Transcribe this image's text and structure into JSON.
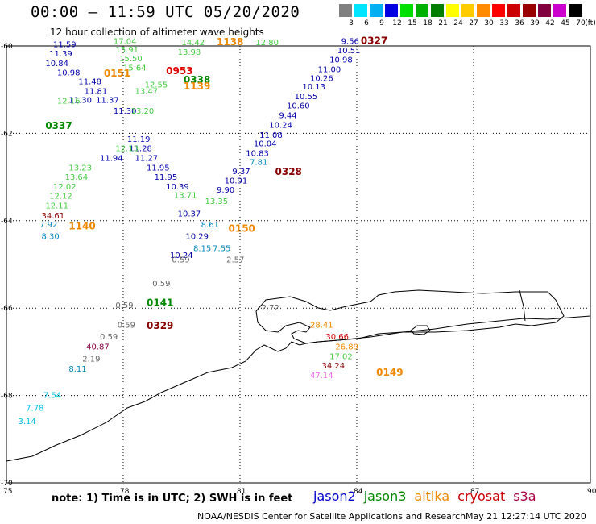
{
  "header": {
    "title": "00:00 – 11:59 UTC 05/20/2020",
    "subtitle": "12 hour collection of altimeter wave heights"
  },
  "colorbar": {
    "unit": "(ft)",
    "bins": [
      {
        "label": "3",
        "color": "#808080"
      },
      {
        "label": "6",
        "color": "#00e5ff"
      },
      {
        "label": "9",
        "color": "#00b0f0"
      },
      {
        "label": "12",
        "color": "#0000e0"
      },
      {
        "label": "15",
        "color": "#00e000"
      },
      {
        "label": "18",
        "color": "#00b000"
      },
      {
        "label": "21",
        "color": "#007f00"
      },
      {
        "label": "24",
        "color": "#ffff00"
      },
      {
        "label": "27",
        "color": "#ffcc00"
      },
      {
        "label": "30",
        "color": "#ff8c00"
      },
      {
        "label": "33",
        "color": "#ff0000"
      },
      {
        "label": "36",
        "color": "#cc0000"
      },
      {
        "label": "39",
        "color": "#990000"
      },
      {
        "label": "42",
        "color": "#800040"
      },
      {
        "label": "45",
        "color": "#cc00cc"
      },
      {
        "label": "70",
        "color": "#000000"
      }
    ]
  },
  "map": {
    "lon_ticks": [
      "75",
      "78",
      "81",
      "84",
      "87",
      "90"
    ],
    "lat_ticks": [
      "-60",
      "-62",
      "-64",
      "-66",
      "-68",
      "-70"
    ],
    "passes": [
      {
        "satellite": "jason2",
        "color": "#0000aa",
        "time": "0327",
        "values": [
          "9.56",
          "10.51",
          "10.98",
          "11.00",
          "10.26",
          "10.13",
          "10.55",
          "10.60",
          "9.44",
          "10.24",
          "11.08",
          "10.04",
          "10.83",
          "7.81",
          "9.37",
          "10.91",
          "9.90"
        ]
      },
      {
        "satellite": "cryosat",
        "color": "#880000",
        "time": "0328",
        "values": []
      },
      {
        "satellite": "jason2",
        "color": "#0000aa",
        "time": "",
        "values": [
          "11.59",
          "11.39",
          "10.84",
          "10.98",
          "11.48",
          "11.81",
          "11.30",
          "11.37",
          "11.30",
          "11.19",
          "11.28",
          "11.94",
          "11.27",
          "11.95",
          "11.95",
          "10.39",
          "10.37",
          "10.29",
          "10.24",
          "8.15",
          "7.55"
        ]
      },
      {
        "satellite": "jason3",
        "color": "#44cc44",
        "time": "0337",
        "values": [
          "17.04",
          "15.91",
          "15.50",
          "15.64",
          "13.47",
          "12.55",
          "13.20",
          "12.16",
          "12.13",
          "13.23",
          "13.64",
          "12.02",
          "12.12",
          "12.11",
          "14.42",
          "13.98",
          "12.80",
          "13.35",
          "8.61"
        ]
      },
      {
        "satellite": "altika",
        "color": "#ee8800",
        "time": "0150",
        "values": [
          "28.41",
          "26.89"
        ]
      },
      {
        "satellite": "cryosat",
        "color": "#880000",
        "time": "0141",
        "values": [
          "34.61",
          "34.24",
          "30.66"
        ]
      },
      {
        "satellite": "s3a",
        "color": "#cc4499",
        "time": "0149",
        "values": [
          "40.87",
          "47.14"
        ]
      }
    ],
    "observations": [
      {
        "text": "9.56",
        "lon": 83.6,
        "lat": -59.95,
        "color": "#0000aa"
      },
      {
        "text": "10.51",
        "lon": 83.5,
        "lat": -60.17,
        "color": "#0000aa"
      },
      {
        "text": "10.98",
        "lon": 83.3,
        "lat": -60.38,
        "color": "#0000aa"
      },
      {
        "text": "11.00",
        "lon": 83.0,
        "lat": -60.6,
        "color": "#0000aa"
      },
      {
        "text": "10.26",
        "lon": 82.8,
        "lat": -60.8,
        "color": "#0000aa"
      },
      {
        "text": "10.13",
        "lon": 82.6,
        "lat": -61.0,
        "color": "#0000aa"
      },
      {
        "text": "10.55",
        "lon": 82.4,
        "lat": -61.22,
        "color": "#0000aa"
      },
      {
        "text": "10.60",
        "lon": 82.2,
        "lat": -61.43,
        "color": "#0000aa"
      },
      {
        "text": "9.44",
        "lon": 82.0,
        "lat": -61.65,
        "color": "#0000aa"
      },
      {
        "text": "10.24",
        "lon": 81.75,
        "lat": -61.87,
        "color": "#0000aa"
      },
      {
        "text": "11.08",
        "lon": 81.5,
        "lat": -62.1,
        "color": "#0000aa"
      },
      {
        "text": "10.04",
        "lon": 81.35,
        "lat": -62.3,
        "color": "#0000aa"
      },
      {
        "text": "10.83",
        "lon": 81.15,
        "lat": -62.52,
        "color": "#0000aa"
      },
      {
        "text": "7.81",
        "lon": 81.25,
        "lat": -62.72,
        "color": "#0088bb"
      },
      {
        "text": "9.37",
        "lon": 80.8,
        "lat": -62.93,
        "color": "#0000aa"
      },
      {
        "text": "10.91",
        "lon": 80.6,
        "lat": -63.15,
        "color": "#0000aa"
      },
      {
        "text": "9.90",
        "lon": 80.4,
        "lat": -63.36,
        "color": "#0000aa"
      },
      {
        "text": "11.59",
        "lon": 76.2,
        "lat": -60.03,
        "color": "#0000aa"
      },
      {
        "text": "11.39",
        "lon": 76.1,
        "lat": -60.24,
        "color": "#0000aa"
      },
      {
        "text": "10.84",
        "lon": 76.0,
        "lat": -60.46,
        "color": "#0000aa"
      },
      {
        "text": "10.98",
        "lon": 76.3,
        "lat": -60.67,
        "color": "#0000aa"
      },
      {
        "text": "11.48",
        "lon": 76.85,
        "lat": -60.88,
        "color": "#0000aa"
      },
      {
        "text": "11.81",
        "lon": 77.0,
        "lat": -61.1,
        "color": "#0000aa"
      },
      {
        "text": "11.30",
        "lon": 76.6,
        "lat": -61.3,
        "color": "#0000aa"
      },
      {
        "text": "11.37",
        "lon": 77.3,
        "lat": -61.3,
        "color": "#0000aa"
      },
      {
        "text": "11.30",
        "lon": 77.75,
        "lat": -61.55,
        "color": "#0000aa"
      },
      {
        "text": "11.19",
        "lon": 78.1,
        "lat": -62.2,
        "color": "#0000aa"
      },
      {
        "text": "11.28",
        "lon": 78.15,
        "lat": -62.41,
        "color": "#0000aa"
      },
      {
        "text": "11.94",
        "lon": 77.4,
        "lat": -62.63,
        "color": "#0000aa"
      },
      {
        "text": "11.27",
        "lon": 78.3,
        "lat": -62.63,
        "color": "#0000aa"
      },
      {
        "text": "11.95",
        "lon": 78.6,
        "lat": -62.85,
        "color": "#0000aa"
      },
      {
        "text": "11.95",
        "lon": 78.8,
        "lat": -63.06,
        "color": "#0000aa"
      },
      {
        "text": "10.39",
        "lon": 79.1,
        "lat": -63.28,
        "color": "#0000aa"
      },
      {
        "text": "10.37",
        "lon": 79.4,
        "lat": -63.9,
        "color": "#0000aa"
      },
      {
        "text": "10.29",
        "lon": 79.6,
        "lat": -64.42,
        "color": "#0000aa"
      },
      {
        "text": "10.24",
        "lon": 79.2,
        "lat": -64.85,
        "color": "#0000aa"
      },
      {
        "text": "8.15",
        "lon": 79.8,
        "lat": -64.7,
        "color": "#0088bb"
      },
      {
        "text": "7.55",
        "lon": 80.3,
        "lat": -64.7,
        "color": "#0088bb"
      },
      {
        "text": "17.04",
        "lon": 77.75,
        "lat": -59.95,
        "color": "#44cc44"
      },
      {
        "text": "15.91",
        "lon": 77.8,
        "lat": -60.15,
        "color": "#44cc44"
      },
      {
        "text": "15.50",
        "lon": 77.9,
        "lat": -60.35,
        "color": "#44cc44"
      },
      {
        "text": "15.64",
        "lon": 78.0,
        "lat": -60.56,
        "color": "#44cc44"
      },
      {
        "text": "13.47",
        "lon": 78.3,
        "lat": -61.1,
        "color": "#44cc44"
      },
      {
        "text": "12.55",
        "lon": 78.55,
        "lat": -60.95,
        "color": "#44cc44"
      },
      {
        "text": "13.20",
        "lon": 78.2,
        "lat": -61.55,
        "color": "#44cc44"
      },
      {
        "text": "12.16",
        "lon": 76.3,
        "lat": -61.32,
        "color": "#44cc44"
      },
      {
        "text": "12.13",
        "lon": 77.8,
        "lat": -62.41,
        "color": "#44cc44"
      },
      {
        "text": "13.23",
        "lon": 76.6,
        "lat": -62.85,
        "color": "#44cc44"
      },
      {
        "text": "13.64",
        "lon": 76.5,
        "lat": -63.06,
        "color": "#44cc44"
      },
      {
        "text": "12.02",
        "lon": 76.2,
        "lat": -63.28,
        "color": "#44cc44"
      },
      {
        "text": "12.12",
        "lon": 76.1,
        "lat": -63.5,
        "color": "#44cc44"
      },
      {
        "text": "12.11",
        "lon": 76.0,
        "lat": -63.72,
        "color": "#44cc44"
      },
      {
        "text": "14.42",
        "lon": 79.5,
        "lat": -59.98,
        "color": "#44cc44"
      },
      {
        "text": "13.98",
        "lon": 79.4,
        "lat": -60.2,
        "color": "#44cc44"
      },
      {
        "text": "12.80",
        "lon": 81.4,
        "lat": -59.98,
        "color": "#44cc44"
      },
      {
        "text": "13.35",
        "lon": 80.1,
        "lat": -63.62,
        "color": "#44cc44"
      },
      {
        "text": "13.71",
        "lon": 79.3,
        "lat": -63.48,
        "color": "#44cc44"
      },
      {
        "text": "8.61",
        "lon": 80.0,
        "lat": -64.15,
        "color": "#0088bb"
      },
      {
        "text": "7.92",
        "lon": 75.85,
        "lat": -64.15,
        "color": "#0088bb"
      },
      {
        "text": "8.30",
        "lon": 75.9,
        "lat": -64.42,
        "color": "#0088bb"
      },
      {
        "text": "34.61",
        "lon": 75.9,
        "lat": -63.95,
        "color": "#880000"
      },
      {
        "text": "0.59",
        "lon": 79.25,
        "lat": -64.95,
        "color": "#666666"
      },
      {
        "text": "2.57",
        "lon": 80.65,
        "lat": -64.95,
        "color": "#666666"
      },
      {
        "text": "0.59",
        "lon": 78.75,
        "lat": -65.5,
        "color": "#666666"
      },
      {
        "text": "0.59",
        "lon": 77.8,
        "lat": -66.0,
        "color": "#666666"
      },
      {
        "text": "2.72",
        "lon": 81.55,
        "lat": -66.05,
        "color": "#666666"
      },
      {
        "text": "0.59",
        "lon": 77.85,
        "lat": -66.45,
        "color": "#666666"
      },
      {
        "text": "0.59",
        "lon": 77.4,
        "lat": -66.72,
        "color": "#666666"
      },
      {
        "text": "40.87",
        "lon": 77.05,
        "lat": -66.95,
        "color": "#880044"
      },
      {
        "text": "2.19",
        "lon": 76.95,
        "lat": -67.22,
        "color": "#666666"
      },
      {
        "text": "8.11",
        "lon": 76.6,
        "lat": -67.45,
        "color": "#0088bb"
      },
      {
        "text": "28.41",
        "lon": 82.8,
        "lat": -66.45,
        "color": "#ee8800"
      },
      {
        "text": "30.66",
        "lon": 83.2,
        "lat": -66.72,
        "color": "#cc0000"
      },
      {
        "text": "26.89",
        "lon": 83.45,
        "lat": -66.95,
        "color": "#ee8800"
      },
      {
        "text": "17.02",
        "lon": 83.3,
        "lat": -67.17,
        "color": "#44cc44"
      },
      {
        "text": "34.24",
        "lon": 83.1,
        "lat": -67.38,
        "color": "#880000"
      },
      {
        "text": "47.14",
        "lon": 82.8,
        "lat": -67.6,
        "color": "#ee66ee"
      },
      {
        "text": "7.54",
        "lon": 75.95,
        "lat": -68.05,
        "color": "#00c0e0"
      },
      {
        "text": "7.78",
        "lon": 75.5,
        "lat": -68.35,
        "color": "#00c0e0"
      },
      {
        "text": "3.14",
        "lon": 75.3,
        "lat": -68.65,
        "color": "#00c0e0"
      }
    ],
    "time_marks": [
      {
        "text": "0327",
        "lon": 84.1,
        "lat": -59.95,
        "color": "#880000"
      },
      {
        "text": "0328",
        "lon": 81.9,
        "lat": -62.95,
        "color": "#880000"
      },
      {
        "text": "0151",
        "lon": 77.5,
        "lat": -60.7,
        "color": "#ee8800"
      },
      {
        "text": "0953",
        "lon": 79.1,
        "lat": -60.65,
        "color": "#dd0000"
      },
      {
        "text": "0338",
        "lon": 79.55,
        "lat": -60.85,
        "color": "#008800"
      },
      {
        "text": "1139",
        "lon": 79.55,
        "lat": -61.0,
        "color": "#ee8800"
      },
      {
        "text": "1138",
        "lon": 80.4,
        "lat": -59.98,
        "color": "#ee8800"
      },
      {
        "text": "0337",
        "lon": 76.0,
        "lat": -61.9,
        "color": "#008800"
      },
      {
        "text": "1140",
        "lon": 76.6,
        "lat": -64.2,
        "color": "#ee8800"
      },
      {
        "text": "0150",
        "lon": 80.7,
        "lat": -64.25,
        "color": "#ee8800"
      },
      {
        "text": "0141",
        "lon": 78.6,
        "lat": -65.95,
        "color": "#008800"
      },
      {
        "text": "0329",
        "lon": 78.6,
        "lat": -66.48,
        "color": "#880000"
      },
      {
        "text": "0149",
        "lon": 84.5,
        "lat": -67.55,
        "color": "#ee8800"
      }
    ]
  },
  "footer": {
    "note": "note:  1) Time is in UTC;  2) SWH is in feet",
    "legend": [
      {
        "name": "jason2",
        "color": "#0000cc"
      },
      {
        "name": "jason3",
        "color": "#008800"
      },
      {
        "name": "altika",
        "color": "#ee8800"
      },
      {
        "name": "cryosat",
        "color": "#cc0000"
      },
      {
        "name": "s3a",
        "color": "#aa0044"
      }
    ],
    "credit": "NOAA/NESDIS Center for Satellite Applications and Research",
    "stamp": "May 21 12:27:14 UTC 2020"
  }
}
